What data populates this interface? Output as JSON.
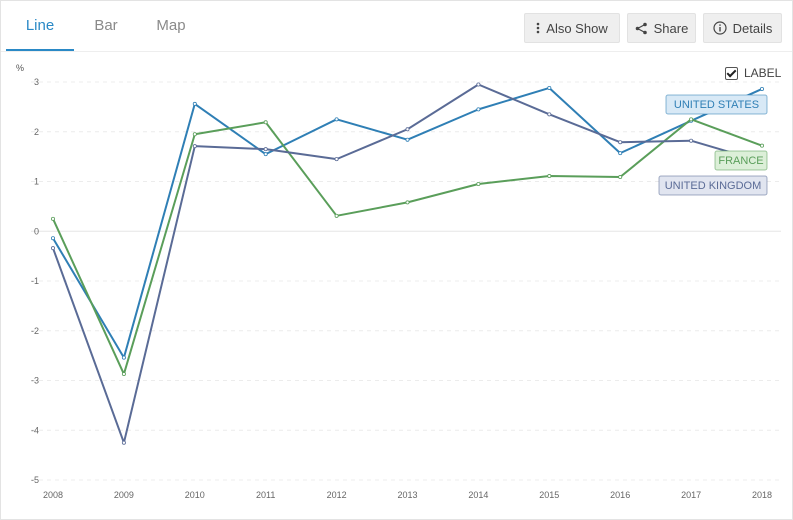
{
  "tabs": [
    {
      "label": "Line",
      "active": true
    },
    {
      "label": "Bar",
      "active": false
    },
    {
      "label": "Map",
      "active": false
    }
  ],
  "toolbar": {
    "also_show": "Also Show",
    "share": "Share",
    "details": "Details"
  },
  "legend_toggle": {
    "label": "LABEL",
    "checked": true
  },
  "chart_data": {
    "type": "line",
    "ylabel": "%",
    "ylim": [
      -5,
      3
    ],
    "yticks": [
      3,
      2,
      1,
      0,
      -1,
      -2,
      -3,
      -4,
      -5
    ],
    "x": [
      "2008",
      "2009",
      "2010",
      "2011",
      "2012",
      "2013",
      "2014",
      "2015",
      "2016",
      "2017",
      "2018"
    ],
    "grid": true,
    "series": [
      {
        "name": "UNITED STATES",
        "color": "#2f7fb5",
        "label_bg": "#d8e9f6",
        "values": [
          -0.14,
          -2.54,
          2.56,
          1.55,
          2.25,
          1.84,
          2.45,
          2.88,
          1.57,
          2.22,
          2.86
        ]
      },
      {
        "name": "FRANCE",
        "color": "#5a9e5a",
        "label_bg": "#dcefd8",
        "values": [
          0.25,
          -2.87,
          1.95,
          2.19,
          0.31,
          0.58,
          0.95,
          1.11,
          1.09,
          2.25,
          1.72
        ]
      },
      {
        "name": "UNITED KINGDOM",
        "color": "#5a6b96",
        "label_bg": "#e1e5f0",
        "values": [
          -0.34,
          -4.25,
          1.71,
          1.65,
          1.45,
          2.05,
          2.95,
          2.35,
          1.79,
          1.82,
          1.4
        ]
      }
    ]
  }
}
